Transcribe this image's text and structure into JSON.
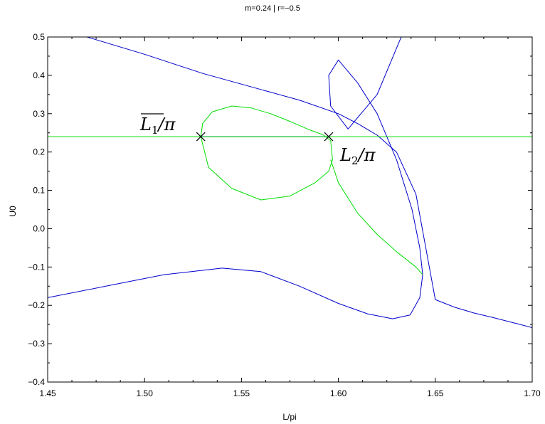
{
  "chart_data": {
    "type": "line",
    "title": "m=0.24 | r=−0.5",
    "xlabel": "L/pi",
    "ylabel": "U0",
    "xlim": [
      1.45,
      1.7
    ],
    "ylim": [
      -0.4,
      0.5
    ],
    "x_ticks": [
      "1.45",
      "1.50",
      "1.55",
      "1.60",
      "1.65",
      "1.70"
    ],
    "x_tick_values": [
      1.45,
      1.5,
      1.55,
      1.6,
      1.65,
      1.7
    ],
    "y_ticks": [
      "−0.4",
      "−0.3",
      "−0.2",
      "−0.1",
      "0.0",
      "0.1",
      "0.2",
      "0.3",
      "0.4",
      "0.5"
    ],
    "y_tick_values": [
      -0.4,
      -0.3,
      -0.2,
      -0.1,
      0.0,
      0.1,
      0.2,
      0.3,
      0.4,
      0.5
    ],
    "grid": false,
    "colors": {
      "blue": "#0000cc",
      "green": "#00dd00"
    },
    "series": [
      {
        "color": "blue",
        "x": [
          1.4703,
          1.5,
          1.53,
          1.56,
          1.58,
          1.6,
          1.61,
          1.62,
          1.63,
          1.64,
          1.65,
          1.66,
          1.67,
          1.68,
          1.69,
          1.7
        ],
        "y": [
          0.5,
          0.455,
          0.405,
          0.363,
          0.335,
          0.3,
          0.274,
          0.244,
          0.2,
          0.09,
          -0.185,
          -0.205,
          -0.22,
          -0.232,
          -0.245,
          -0.258
        ]
      },
      {
        "color": "blue",
        "x": [
          1.45,
          1.48,
          1.51,
          1.54,
          1.56,
          1.58,
          1.6,
          1.615,
          1.628,
          1.637,
          1.642,
          1.6435,
          1.642,
          1.638,
          1.63,
          1.62,
          1.61,
          1.6,
          1.595,
          1.596,
          1.605,
          1.62,
          1.6324
        ],
        "y": [
          -0.18,
          -0.15,
          -0.12,
          -0.103,
          -0.112,
          -0.15,
          -0.195,
          -0.222,
          -0.235,
          -0.225,
          -0.18,
          -0.12,
          -0.05,
          0.05,
          0.18,
          0.3,
          0.38,
          0.44,
          0.4,
          0.32,
          0.26,
          0.35,
          0.5
        ]
      },
      {
        "color": "blue",
        "x": [
          1.529,
          1.595
        ],
        "y": [
          0.24,
          0.24
        ]
      },
      {
        "color": "green",
        "x": [
          1.45,
          1.7
        ],
        "y": [
          0.24,
          0.24
        ]
      },
      {
        "color": "green",
        "x": [
          1.529,
          1.53,
          1.535,
          1.545,
          1.555,
          1.565,
          1.575,
          1.585,
          1.592,
          1.596,
          1.597,
          1.595,
          1.588,
          1.575,
          1.56,
          1.545,
          1.533,
          1.529
        ],
        "y": [
          0.24,
          0.275,
          0.305,
          0.32,
          0.315,
          0.3,
          0.28,
          0.258,
          0.245,
          0.23,
          0.18,
          0.15,
          0.12,
          0.085,
          0.075,
          0.105,
          0.16,
          0.24
        ]
      },
      {
        "color": "green",
        "x": [
          1.596,
          1.6,
          1.61,
          1.62,
          1.63,
          1.64,
          1.6435
        ],
        "y": [
          0.18,
          0.12,
          0.04,
          -0.015,
          -0.06,
          -0.1,
          -0.12
        ]
      }
    ],
    "markers": [
      {
        "x": 1.529,
        "y": 0.24,
        "label": "L̅₁/π"
      },
      {
        "x": 1.595,
        "y": 0.24,
        "label": "L₂/π"
      }
    ],
    "annotations": {
      "left_main": "L",
      "left_sub": "1",
      "left_tail": "/π",
      "right_main": "L",
      "right_sub": "2",
      "right_tail": "/π"
    }
  }
}
